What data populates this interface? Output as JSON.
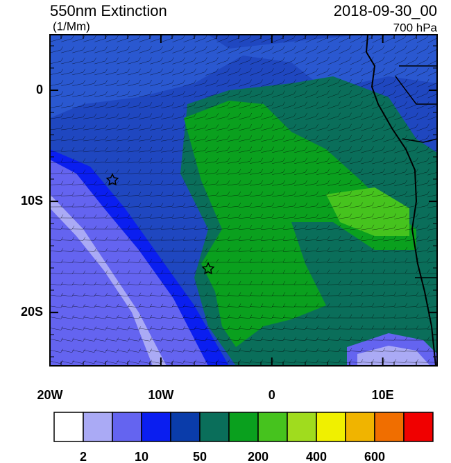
{
  "map": {
    "title": "550nm Extinction",
    "units": "(1/Mm)",
    "time": "2018-09-30_00",
    "level": "700 hPa",
    "xlim": [
      -20,
      14.9
    ],
    "ylim": [
      -24.8,
      5
    ],
    "xticks": [
      {
        "value": -20,
        "label": "20W"
      },
      {
        "value": -10,
        "label": "10W"
      },
      {
        "value": 0,
        "label": "0"
      },
      {
        "value": 10,
        "label": "10E"
      }
    ],
    "yticks": [
      {
        "value": 0,
        "label": "0"
      },
      {
        "value": -10,
        "label": "10S"
      },
      {
        "value": -20,
        "label": "20S"
      }
    ],
    "colorbar": {
      "colors": [
        "#ffffff",
        "#aaaaf5",
        "#6464f0",
        "#0a1ef0",
        "#0a3caa",
        "#0a6e5a",
        "#0aa01e",
        "#46c31e",
        "#a0dc1e",
        "#f0f000",
        "#f0b400",
        "#f06e00",
        "#f00000"
      ],
      "labels": [
        2,
        10,
        50,
        200,
        400,
        600
      ]
    }
  }
}
